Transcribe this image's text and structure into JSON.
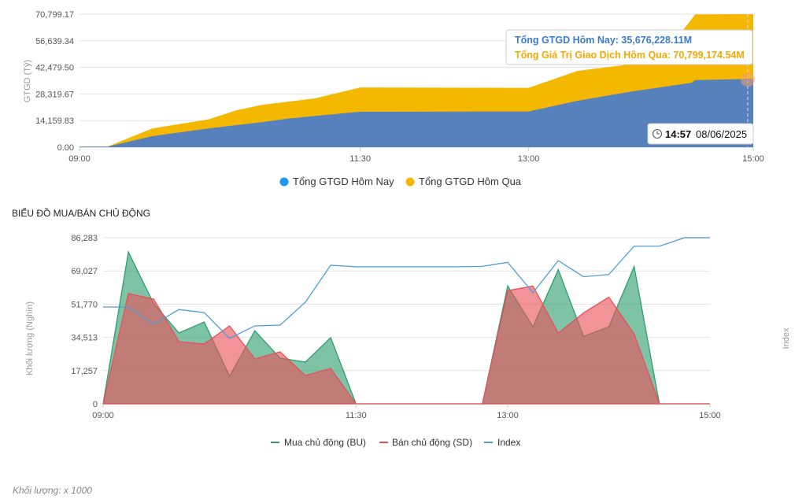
{
  "chart_data": [
    {
      "type": "area",
      "ylabel": "GTGD (Tỷ)",
      "yticks": [
        "0.00",
        "14,159.83",
        "28,319.67",
        "42,479.50",
        "56,639.34",
        "70,799.17"
      ],
      "ylim": [
        0,
        70799.17
      ],
      "xticks": [
        "09:00",
        "11:30",
        "13:00",
        "15:00"
      ],
      "xlim": [
        "09:00",
        "15:00"
      ],
      "grid": true,
      "legend_position": "bottom",
      "series": [
        {
          "name": "Tổng GTGD Hôm Nay",
          "color": "#5681bd",
          "legend_color": "#2196f3",
          "x": [
            "09:00",
            "09:15",
            "09:39",
            "10:09",
            "10:38",
            "10:51",
            "11:30",
            "13:00",
            "13:26",
            "13:54",
            "14:27",
            "14:29",
            "15:00"
          ],
          "values": [
            300,
            300,
            5900,
            10000,
            13400,
            15200,
            18900,
            19000,
            24700,
            29500,
            34300,
            35700,
            36400
          ]
        },
        {
          "name": "Tổng GTGD Hôm Qua",
          "color": "#f5b800",
          "legend_color": "#f5b800",
          "x": [
            "09:00",
            "09:15",
            "09:39",
            "10:09",
            "10:24",
            "10:38",
            "11:06",
            "11:30",
            "13:00",
            "13:26",
            "13:54",
            "14:08",
            "14:23",
            "14:29",
            "15:00"
          ],
          "values": [
            300,
            300,
            10000,
            14800,
            19700,
            22600,
            26000,
            31800,
            31600,
            40600,
            44100,
            46900,
            63000,
            70700,
            70800
          ]
        }
      ],
      "tooltip": {
        "line1": "Tổng GTGD Hôm Nay: 35,676,228.11M",
        "line2": "Tổng Giá Trị Giao Dịch Hôm Qua: 70,799,174.54M",
        "time": "14:57",
        "date": "08/06/2025",
        "icon": "clock-icon"
      }
    },
    {
      "type": "area",
      "title": "BIỂU ĐỒ MUA/BÁN CHỦ ĐỘNG",
      "ylabel": "Khối lượng (Nghìn)",
      "y2label": "Index",
      "yticks": [
        "0",
        "17,257",
        "34,513",
        "51,770",
        "69,027",
        "86,283"
      ],
      "ylim": [
        0,
        86283
      ],
      "xticks": [
        "09:00",
        "11:30",
        "13:00",
        "15:00"
      ],
      "xlim": [
        "09:00",
        "15:00"
      ],
      "grid": true,
      "legend_position": "bottom",
      "x": [
        "09:00",
        "09:15",
        "09:30",
        "09:45",
        "10:00",
        "10:15",
        "10:30",
        "10:45",
        "11:00",
        "11:15",
        "11:30",
        "11:45",
        "12:00",
        "12:15",
        "12:30",
        "12:45",
        "13:00",
        "13:15",
        "13:30",
        "13:45",
        "14:00",
        "14:15",
        "14:30",
        "14:45",
        "15:00"
      ],
      "series": [
        {
          "name": "Mua chủ động (BU)",
          "color": "#2e9e6e",
          "values": [
            0,
            78900,
            52000,
            36800,
            42500,
            14300,
            38000,
            23700,
            21700,
            34400,
            0,
            0,
            0,
            0,
            0,
            0,
            61200,
            40000,
            69700,
            35000,
            40000,
            71300,
            0,
            0,
            0
          ]
        },
        {
          "name": "Bán chủ động (SD)",
          "color": "#e8505b",
          "values": [
            0,
            57300,
            54400,
            32300,
            31100,
            40500,
            23300,
            27000,
            14700,
            18400,
            0,
            0,
            0,
            0,
            0,
            0,
            58800,
            61200,
            36700,
            47200,
            55400,
            36300,
            0,
            0,
            0
          ]
        },
        {
          "name": "Index",
          "color": "#4a9fd8",
          "type": "line",
          "values": [
            50300,
            50300,
            41300,
            49000,
            47400,
            34000,
            40500,
            40900,
            52800,
            72000,
            71200,
            71200,
            71200,
            71200,
            71200,
            71400,
            73500,
            57700,
            74400,
            66000,
            67200,
            81900,
            81900,
            86300,
            86300
          ]
        }
      ]
    }
  ],
  "footnote": "Khối lượng: x 1000"
}
